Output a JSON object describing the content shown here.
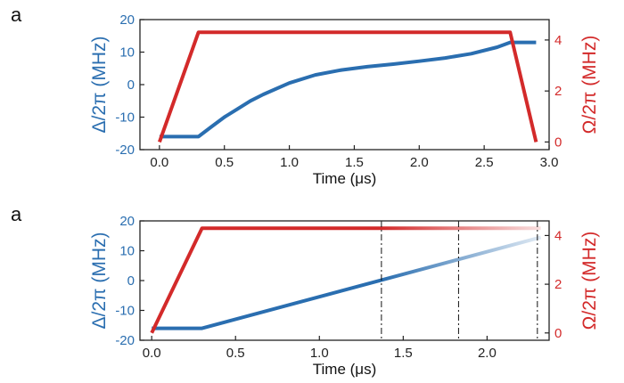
{
  "colors": {
    "detuning": "#2a6eb0",
    "rabi": "#d32a2a",
    "axis": "#222222"
  },
  "chart_data": [
    {
      "type": "line",
      "panel_label": "a",
      "xlabel": "Time (μs)",
      "ylabel_left": "Δ/2π (MHz)",
      "ylabel_right": "Ω/2π (MHz)",
      "xlim": [
        -0.15,
        3.0
      ],
      "ylim_left": [
        -20,
        20
      ],
      "ylim_right": [
        -0.3,
        4.8
      ],
      "x_ticks": [
        "0.0",
        "0.5",
        "1.0",
        "1.5",
        "2.0",
        "2.5",
        "3.0"
      ],
      "x_tick_values": [
        0,
        0.5,
        1.0,
        1.5,
        2.0,
        2.5,
        3.0
      ],
      "y_ticks_left": [
        "20",
        "10",
        "0",
        "-10",
        "-20"
      ],
      "y_tick_values_left": [
        20,
        10,
        0,
        -10,
        -20
      ],
      "y_ticks_right": [
        "4",
        "2",
        "0"
      ],
      "y_tick_values_right": [
        4,
        2,
        0
      ],
      "series": [
        {
          "axis": "left",
          "color": "detuning",
          "x": [
            0,
            0.3,
            0.4,
            0.5,
            0.6,
            0.7,
            0.8,
            1.0,
            1.2,
            1.4,
            1.6,
            1.8,
            2.0,
            2.2,
            2.4,
            2.6,
            2.7,
            2.9
          ],
          "y": [
            -16,
            -16,
            -13,
            -10,
            -7.5,
            -5,
            -3,
            0.5,
            3,
            4.5,
            5.5,
            6.3,
            7.2,
            8.2,
            9.5,
            11.5,
            13,
            13
          ]
        },
        {
          "axis": "right",
          "color": "rabi",
          "x": [
            0,
            0.3,
            2.7,
            2.9
          ],
          "y": [
            0,
            4.3,
            4.3,
            0
          ]
        }
      ],
      "markers": []
    },
    {
      "type": "line",
      "panel_label": "a",
      "xlabel": "Time (μs)",
      "ylabel_left": "Δ/2π (MHz)",
      "ylabel_right": "Ω/2π (MHz)",
      "xlim": [
        -0.07,
        2.37
      ],
      "ylim_left": [
        -20,
        20
      ],
      "ylim_right": [
        -0.3,
        4.6
      ],
      "x_ticks": [
        "0.0",
        "0.5",
        "1.0",
        "1.5",
        "2.0"
      ],
      "x_tick_values": [
        0,
        0.5,
        1.0,
        1.5,
        2.0
      ],
      "y_ticks_left": [
        "20",
        "10",
        "0",
        "-10",
        "-20"
      ],
      "y_tick_values_left": [
        20,
        10,
        0,
        -10,
        -20
      ],
      "y_ticks_right": [
        "4",
        "2",
        "0"
      ],
      "y_tick_values_right": [
        4,
        2,
        0
      ],
      "series": [
        {
          "axis": "left",
          "color": "detuning",
          "fade_after": 1.37,
          "x": [
            0,
            0.3,
            2.32
          ],
          "y": [
            -16,
            -16,
            14.5
          ]
        },
        {
          "axis": "right",
          "color": "rabi",
          "fade_after": 1.37,
          "x": [
            0,
            0.3,
            2.32
          ],
          "y": [
            0,
            4.3,
            4.3
          ]
        }
      ],
      "markers": [
        1.37,
        1.83,
        2.3
      ]
    }
  ]
}
